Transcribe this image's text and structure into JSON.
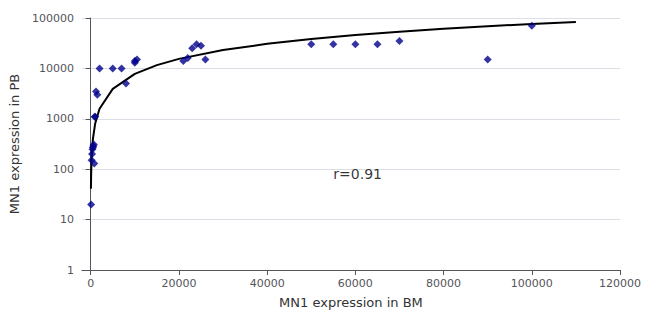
{
  "chart_data": {
    "type": "scatter",
    "xlabel": "MN1 expression in BM",
    "ylabel": "MN1 expression in PB",
    "annotations": [
      {
        "text": "r=0.91",
        "x": 55000,
        "y": 80
      }
    ],
    "series": [
      {
        "type": "line",
        "color": "#000000",
        "x": [
          50,
          100,
          200,
          500,
          1000,
          2000,
          5000,
          10000,
          15000,
          20000,
          30000,
          40000,
          50000,
          60000,
          70000,
          80000,
          90000,
          100000,
          110000
        ],
        "values": [
          41.05,
          81.53,
          161.92,
          401.1,
          796.6,
          1582.2,
          3919.3,
          7784.3,
          11630.3,
          15460.7,
          23096.6,
          30706.7,
          38297.5,
          45873,
          53435.6,
          60987.7,
          68530,
          76063.9,
          83590.5
        ]
      },
      {
        "type": "scatter",
        "color": "#00008B",
        "marker": "diamond",
        "x": [
          100,
          200,
          300,
          400,
          500,
          600,
          700,
          800,
          900,
          1000,
          1200,
          1500,
          2000,
          5000,
          7000,
          8000,
          10000,
          10000,
          10500,
          21000,
          22000,
          23000,
          24000,
          25000,
          26000,
          50000,
          55000,
          60000,
          65000,
          70000,
          90000,
          100000
        ],
        "values": [
          20,
          150,
          200,
          250,
          270,
          290,
          310,
          130,
          1100,
          1100,
          3500,
          3000,
          10000,
          10000,
          10000,
          5000,
          13000,
          14000,
          15000,
          14000,
          16000,
          25000,
          30000,
          28000,
          15000,
          30000,
          30000,
          30000,
          30000,
          35000,
          15000,
          70000
        ]
      }
    ],
    "xlim": [
      -2000,
      120000
    ],
    "ylim": [
      1,
      100000
    ],
    "xticks": [
      0,
      20000,
      40000,
      60000,
      80000,
      100000,
      120000
    ],
    "yticks": [
      1,
      10,
      100,
      1000,
      10000,
      100000
    ],
    "log": "y",
    "grid": "y"
  }
}
